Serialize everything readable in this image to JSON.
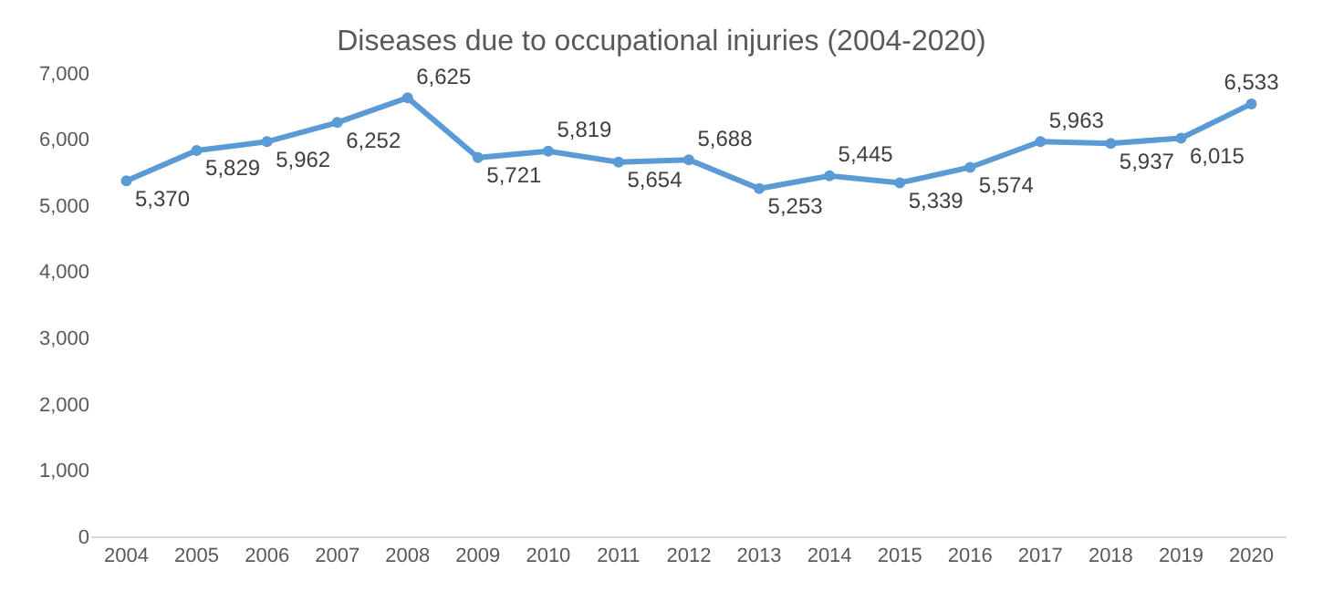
{
  "chart_data": {
    "type": "line",
    "title": "Diseases due to occupational injuries (2004-2020)",
    "categories": [
      "2004",
      "2005",
      "2006",
      "2007",
      "2008",
      "2009",
      "2010",
      "2011",
      "2012",
      "2013",
      "2014",
      "2015",
      "2016",
      "2017",
      "2018",
      "2019",
      "2020"
    ],
    "series": [
      {
        "color": "#5b9bd5",
        "values": [
          5370,
          5829,
          5962,
          6252,
          6625,
          5721,
          5819,
          5654,
          5688,
          5253,
          5445,
          5339,
          5574,
          5963,
          5937,
          6015,
          6533
        ],
        "value_labels": [
          "5,370",
          "5,829",
          "5,962",
          "6,252",
          "6,625",
          "5,721",
          "5,819",
          "5,654",
          "5,688",
          "5,253",
          "5,445",
          "5,339",
          "5,574",
          "5,963",
          "5,937",
          "6,015",
          "6,533"
        ]
      }
    ],
    "ylim": [
      0,
      7000
    ],
    "yticks": [
      {
        "value": 0,
        "label": "0"
      },
      {
        "value": 1000,
        "label": "1,000"
      },
      {
        "value": 2000,
        "label": "2,000"
      },
      {
        "value": 3000,
        "label": "3,000"
      },
      {
        "value": 4000,
        "label": "4,000"
      },
      {
        "value": 5000,
        "label": "5,000"
      },
      {
        "value": 6000,
        "label": "6,000"
      },
      {
        "value": 7000,
        "label": "7,000"
      }
    ],
    "marker": "circle",
    "line_style": "solid"
  }
}
